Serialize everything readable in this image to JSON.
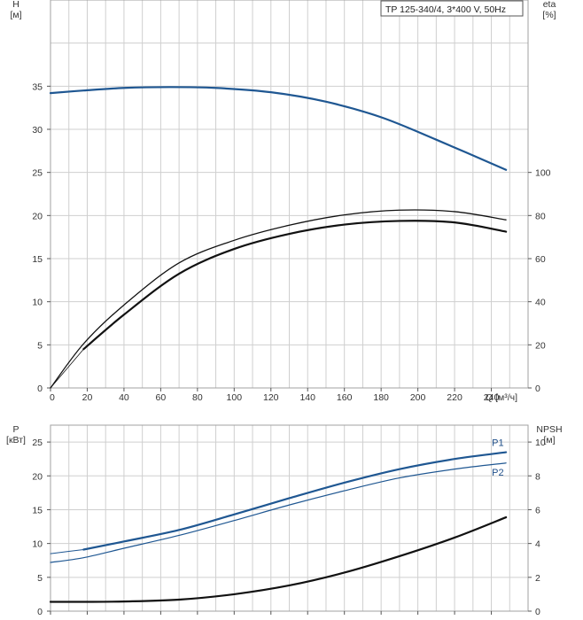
{
  "legend_box": "TP 125-340/4, 3*400 V, 50Hz",
  "colors": {
    "blue": "#1f5792",
    "black": "#111111",
    "grid": "#cfcfcf"
  },
  "chart_data": [
    {
      "id": "top",
      "type": "line",
      "xlabel": "Q [м³/ч]",
      "ylabel_left_line1": "H",
      "ylabel_left_line2": "[м]",
      "ylabel_right_line1": "eta",
      "ylabel_right_line2": "[%]",
      "xlim": [
        0,
        260
      ],
      "x_ticks": [
        0,
        20,
        40,
        60,
        80,
        100,
        120,
        140,
        160,
        180,
        200,
        220,
        240
      ],
      "x_tick_labels": [
        "0",
        "20",
        "40",
        "60",
        "80",
        "100",
        "120",
        "140",
        "160",
        "180",
        "200",
        "220",
        "240"
      ],
      "ylim_left": [
        0,
        45
      ],
      "y_left_ticks": [
        0,
        5,
        10,
        15,
        20,
        25,
        30,
        35
      ],
      "y_left_tick_labels": [
        "0",
        "5",
        "10",
        "15",
        "20",
        "25",
        "30",
        "35"
      ],
      "ylim_right": [
        0,
        180
      ],
      "y_right_ticks": [
        0,
        20,
        40,
        60,
        80,
        100
      ],
      "y_right_tick_labels": [
        "0",
        "20",
        "40",
        "60",
        "80",
        "100"
      ],
      "grid": true,
      "series": [
        {
          "axis": "left",
          "color": "blue",
          "width": 2.2,
          "x": [
            0,
            18,
            40,
            65,
            90,
            120,
            150,
            180,
            210,
            248
          ],
          "y": [
            34.2,
            34.5,
            34.8,
            34.9,
            34.8,
            34.3,
            33.2,
            31.4,
            28.8,
            25.3
          ]
        },
        {
          "axis": "left",
          "color": "blue",
          "width": 1.0,
          "x": [
            0,
            18
          ],
          "y": [
            34.2,
            34.5
          ]
        },
        {
          "axis": "right",
          "color": "black",
          "width": 1.3,
          "x": [
            0,
            18,
            40,
            70,
            100,
            130,
            160,
            190,
            220,
            248
          ],
          "y": [
            0,
            20.5,
            38.5,
            58,
            68.5,
            75.5,
            80.3,
            82.5,
            81.8,
            78
          ]
        },
        {
          "axis": "right",
          "color": "black",
          "width": 2.2,
          "x": [
            18,
            40,
            70,
            100,
            130,
            160,
            190,
            220,
            248
          ],
          "y": [
            18,
            34,
            53,
            64.5,
            71.5,
            75.8,
            77.5,
            76.8,
            72.5
          ]
        },
        {
          "axis": "right",
          "color": "black",
          "width": 0.8,
          "x": [
            0,
            18
          ],
          "y": [
            0,
            18
          ]
        }
      ]
    },
    {
      "id": "bottom",
      "type": "line",
      "ylabel_left_line1": "P",
      "ylabel_left_line2": "[кВт]",
      "ylabel_right_line1": "NPSH",
      "ylabel_right_line2": "[м]",
      "xlim": [
        0,
        260
      ],
      "x_ticks": [
        0,
        20,
        40,
        60,
        80,
        100,
        120,
        140,
        160,
        180,
        200,
        220,
        240
      ],
      "ylim_left": [
        0,
        27.5
      ],
      "y_left_ticks": [
        0,
        5,
        10,
        15,
        20,
        25
      ],
      "y_left_tick_labels": [
        "0",
        "5",
        "10",
        "15",
        "20",
        "25"
      ],
      "ylim_right": [
        0,
        11
      ],
      "y_right_ticks": [
        0,
        2,
        4,
        6,
        8,
        10
      ],
      "y_right_tick_labels": [
        "0",
        "2",
        "4",
        "6",
        "8",
        "10"
      ],
      "grid": true,
      "series": [
        {
          "name": "P1",
          "axis": "left",
          "color": "blue",
          "width": 2.2,
          "x": [
            18,
            40,
            70,
            100,
            130,
            160,
            190,
            220,
            248
          ],
          "y": [
            9.1,
            10.3,
            12.0,
            14.3,
            16.7,
            19.0,
            21.0,
            22.5,
            23.5
          ]
        },
        {
          "axis": "left",
          "color": "blue",
          "width": 1.0,
          "x": [
            0,
            18
          ],
          "y": [
            8.5,
            9.1
          ]
        },
        {
          "name": "P2",
          "axis": "left",
          "color": "blue",
          "width": 1.2,
          "x": [
            0,
            18,
            40,
            70,
            100,
            130,
            160,
            190,
            220,
            248
          ],
          "y": [
            7.2,
            7.9,
            9.3,
            11.2,
            13.4,
            15.7,
            17.8,
            19.7,
            21.0,
            21.9
          ]
        },
        {
          "axis": "right",
          "color": "black",
          "width": 2.2,
          "x": [
            0,
            18,
            40,
            70,
            100,
            130,
            160,
            190,
            220,
            248
          ],
          "y": [
            0.55,
            0.55,
            0.57,
            0.68,
            1.0,
            1.52,
            2.28,
            3.25,
            4.35,
            5.55
          ]
        }
      ]
    }
  ]
}
